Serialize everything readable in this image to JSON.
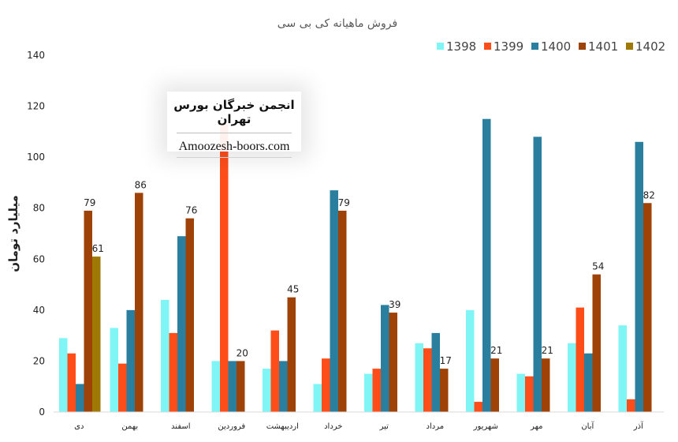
{
  "chart_data": {
    "type": "bar",
    "title": "فروش ماهیانه کی بی سی",
    "ylabel": "میلیارد تومان",
    "xlabel": "",
    "ylim": [
      0,
      140
    ],
    "yticks": [
      0,
      20,
      40,
      60,
      80,
      100,
      120,
      140
    ],
    "grid": false,
    "legend_position": "top-right",
    "categories": [
      "دی",
      "بهمن",
      "اسفند",
      "فروردین",
      "اردیبهشت",
      "خرداد",
      "تیر",
      "مرداد",
      "شهریور",
      "مهر",
      "آبان",
      "آذر"
    ],
    "series": [
      {
        "name": "1398",
        "color": "#7ff5f5",
        "values": [
          29,
          33,
          44,
          20,
          17,
          11,
          15,
          27,
          40,
          15,
          27,
          34
        ]
      },
      {
        "name": "1399",
        "color": "#ff4d1a",
        "values": [
          23,
          19,
          31,
          113,
          32,
          21,
          17,
          25,
          4,
          14,
          41,
          5
        ]
      },
      {
        "name": "1400",
        "color": "#2b7f9e",
        "values": [
          11,
          40,
          69,
          20,
          20,
          87,
          42,
          31,
          115,
          108,
          23,
          106
        ]
      },
      {
        "name": "1401",
        "color": "#9e4208",
        "values": [
          79,
          86,
          76,
          20,
          45,
          79,
          39,
          17,
          21,
          21,
          54,
          82
        ]
      },
      {
        "name": "1402",
        "color": "#9e7a05",
        "values": [
          61,
          null,
          null,
          null,
          null,
          null,
          null,
          null,
          null,
          null,
          null,
          null
        ]
      }
    ],
    "data_labels": [
      {
        "series": "1401",
        "category": "دی",
        "text": "79"
      },
      {
        "series": "1402",
        "category": "دی",
        "text": "61"
      },
      {
        "series": "1401",
        "category": "بهمن",
        "text": "86"
      },
      {
        "series": "1401",
        "category": "اسفند",
        "text": "76"
      },
      {
        "series": "1401",
        "category": "فروردین",
        "text": "20"
      },
      {
        "series": "1401",
        "category": "اردیبهشت",
        "text": "45"
      },
      {
        "series": "1401",
        "category": "خرداد",
        "text": "79"
      },
      {
        "series": "1401",
        "category": "تیر",
        "text": "39"
      },
      {
        "series": "1401",
        "category": "مرداد",
        "text": "17"
      },
      {
        "series": "1401",
        "category": "شهریور",
        "text": "21"
      },
      {
        "series": "1401",
        "category": "مهر",
        "text": "21"
      },
      {
        "series": "1401",
        "category": "آبان",
        "text": "54"
      },
      {
        "series": "1401",
        "category": "آذر",
        "text": "82"
      }
    ]
  },
  "watermark": {
    "title": "انجمن خبرگان بورس تهران",
    "site": "Amoozesh-boors.com"
  }
}
